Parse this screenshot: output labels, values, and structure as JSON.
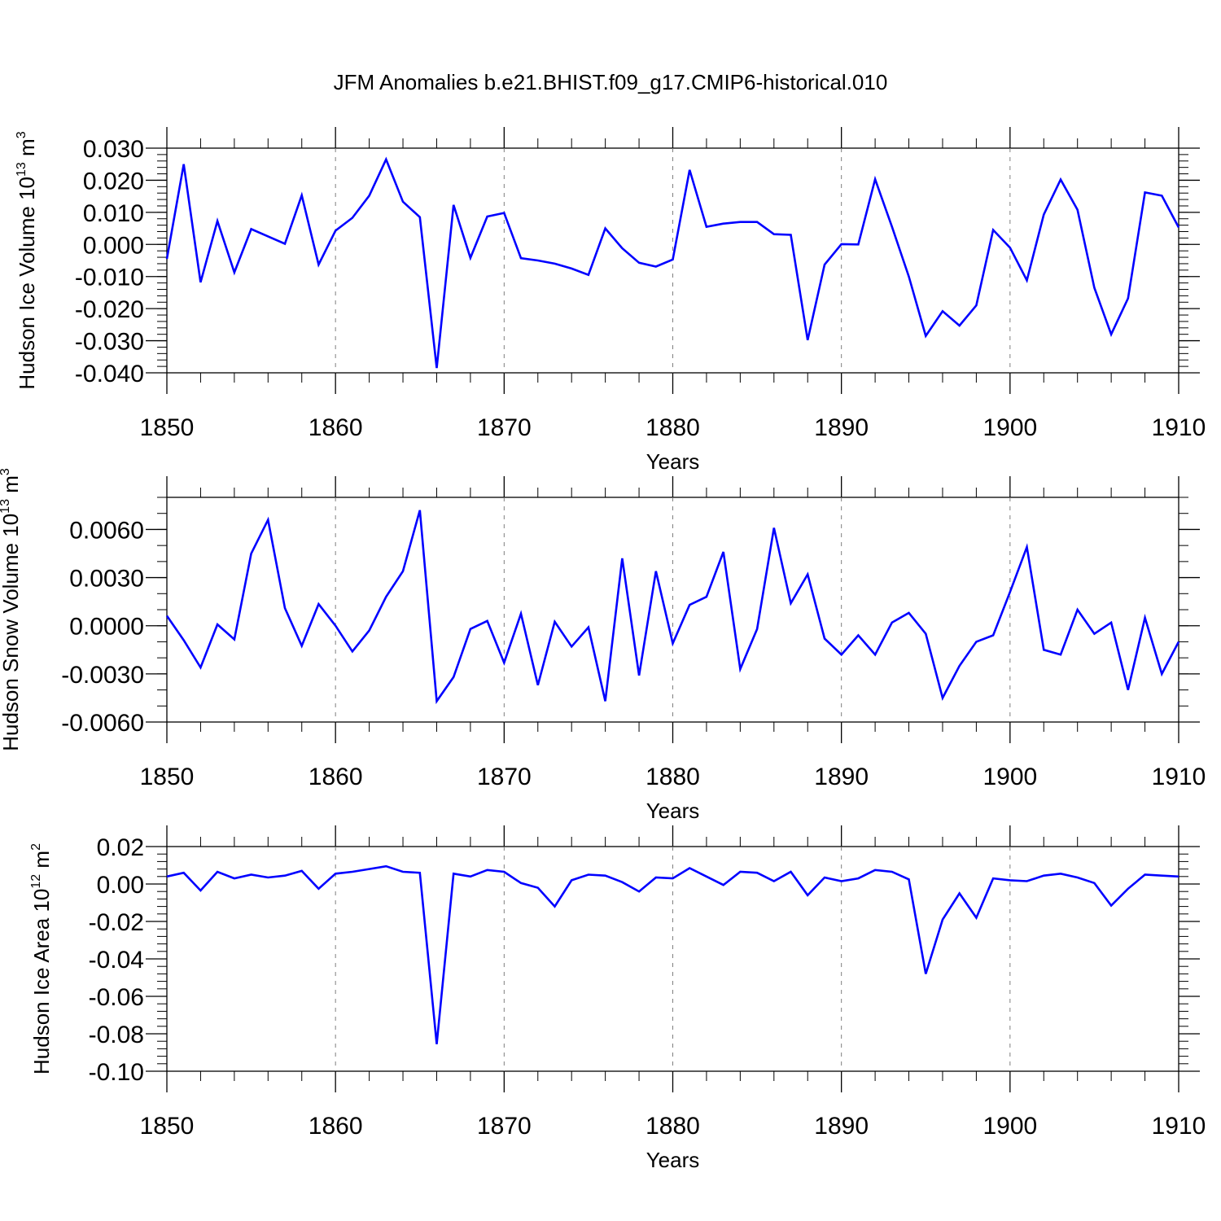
{
  "title": "JFM Anomalies b.e21.BHIST.f09_g17.CMIP6-historical.010",
  "colors": {
    "line": "#0000ff",
    "axis": "#000000",
    "grid": "#7f7f7f"
  },
  "chart_data": [
    {
      "type": "line",
      "xlabel": "Years",
      "ylabel": "Hudson Ice Volume 10",
      "ylabel_exp": "13",
      "ylabel_unit": " m",
      "ylabel_unit_exp": "3",
      "xlim": [
        1850,
        1910
      ],
      "ylim": [
        -0.04,
        0.03
      ],
      "grid": "vertical dashed at major x ticks",
      "x_ticks": [
        "1850",
        "1860",
        "1870",
        "1880",
        "1890",
        "1900",
        "1910"
      ],
      "y_ticks": [
        "0.030",
        "0.020",
        "0.010",
        "0.000",
        "-0.010",
        "-0.020",
        "-0.030",
        "-0.040"
      ],
      "y_tick_values": [
        0.03,
        0.02,
        0.01,
        0.0,
        -0.01,
        -0.02,
        -0.03,
        -0.04
      ],
      "y_minor_step": 0.002,
      "x_start": 1850,
      "values": [
        -0.0045,
        0.025,
        -0.0118,
        0.0073,
        -0.0087,
        0.0048,
        0.0025,
        0.0002,
        0.0153,
        -0.0063,
        0.0043,
        0.0083,
        0.0152,
        0.0265,
        0.0133,
        0.0085,
        -0.0385,
        0.0123,
        -0.0042,
        0.0087,
        0.0098,
        -0.0043,
        -0.005,
        -0.006,
        -0.0075,
        -0.0095,
        0.005,
        -0.0012,
        -0.0057,
        -0.0069,
        -0.0047,
        0.0232,
        0.0055,
        0.0065,
        0.007,
        0.007,
        0.0032,
        0.003,
        -0.0298,
        -0.0063,
        0.0001,
        0.0,
        0.0203,
        0.0055,
        -0.01,
        -0.0285,
        -0.0208,
        -0.0253,
        -0.019,
        0.0045,
        -0.001,
        -0.0112,
        0.0093,
        0.0202,
        0.0108,
        -0.0135,
        -0.028,
        -0.0168,
        0.0162,
        0.0152,
        0.0053
      ]
    },
    {
      "type": "line",
      "xlabel": "Years",
      "ylabel": "Hudson Snow Volume 10",
      "ylabel_exp": "13",
      "ylabel_unit": " m",
      "ylabel_unit_exp": "3",
      "xlim": [
        1850,
        1910
      ],
      "ylim": [
        -0.006,
        0.008
      ],
      "grid": "vertical dashed at major x ticks",
      "x_ticks": [
        "1850",
        "1860",
        "1870",
        "1880",
        "1890",
        "1900",
        "1910"
      ],
      "y_ticks": [
        "0.0060",
        "0.0030",
        "0.0000",
        "-0.0030",
        "-0.0060"
      ],
      "y_tick_values": [
        0.006,
        0.003,
        0.0,
        -0.003,
        -0.006
      ],
      "y_minor_step": 0.001,
      "x_start": 1850,
      "values": [
        0.00062,
        -0.0009,
        -0.0026,
        8e-05,
        -0.00085,
        0.0045,
        0.0066,
        0.0011,
        -0.00125,
        0.00135,
        0.0,
        -0.0016,
        -0.0003,
        0.0018,
        0.0034,
        0.0072,
        -0.0047,
        -0.0032,
        -0.0002,
        0.0003,
        -0.0023,
        0.00075,
        -0.0037,
        0.00025,
        -0.0013,
        -0.0001,
        -0.0047,
        0.0042,
        -0.0031,
        0.0034,
        -0.0011,
        0.0013,
        0.0018,
        0.0046,
        -0.0027,
        -0.0002,
        0.0061,
        0.0014,
        0.0032,
        -0.0008,
        -0.0018,
        -0.0006,
        -0.0018,
        0.0002,
        0.0008,
        -0.0005,
        -0.0045,
        -0.0025,
        -0.001,
        -0.0006,
        0.0021,
        0.0049,
        -0.0015,
        -0.0018,
        0.001,
        -0.0005,
        0.0002,
        -0.004,
        0.0005,
        -0.003,
        -0.001
      ]
    },
    {
      "type": "line",
      "xlabel": "Years",
      "ylabel": "Hudson Ice Area 10",
      "ylabel_exp": "12",
      "ylabel_unit": " m",
      "ylabel_unit_exp": "2",
      "xlim": [
        1850,
        1910
      ],
      "ylim": [
        -0.1,
        0.02
      ],
      "grid": "vertical dashed at major x ticks",
      "x_ticks": [
        "1850",
        "1860",
        "1870",
        "1880",
        "1890",
        "1900",
        "1910"
      ],
      "y_ticks": [
        "0.02",
        "0.00",
        "-0.02",
        "-0.04",
        "-0.06",
        "-0.08",
        "-0.10"
      ],
      "y_tick_values": [
        0.02,
        0.0,
        -0.02,
        -0.04,
        -0.06,
        -0.08,
        -0.1
      ],
      "y_minor_step": 0.004,
      "x_start": 1850,
      "values": [
        0.004,
        0.006,
        -0.0035,
        0.0065,
        0.003,
        0.005,
        0.0035,
        0.0045,
        0.007,
        -0.0025,
        0.0055,
        0.0065,
        0.008,
        0.0095,
        0.0065,
        0.006,
        -0.0855,
        0.0055,
        0.004,
        0.0075,
        0.0065,
        0.0005,
        -0.002,
        -0.012,
        0.002,
        0.005,
        0.0045,
        0.001,
        -0.004,
        0.0035,
        0.003,
        0.0085,
        0.004,
        -0.0005,
        0.0065,
        0.006,
        0.0015,
        0.0065,
        -0.006,
        0.0035,
        0.0015,
        0.003,
        0.0075,
        0.0065,
        0.0025,
        -0.048,
        -0.019,
        -0.005,
        -0.018,
        0.003,
        0.002,
        0.0015,
        0.0045,
        0.0055,
        0.0035,
        0.0005,
        -0.0115,
        -0.0025,
        0.005,
        0.0045,
        0.004
      ]
    }
  ]
}
